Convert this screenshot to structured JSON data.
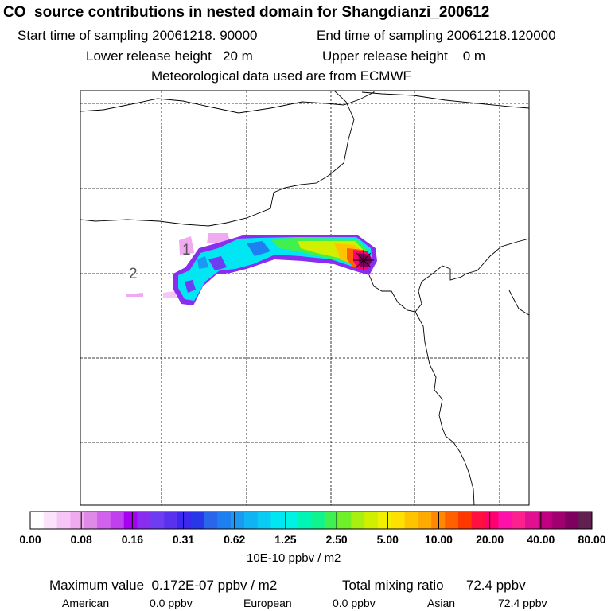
{
  "header": {
    "title": "CO  source contributions in nested domain for Shangdianzi_200612",
    "start_time": "Start time of sampling 20061218. 90000",
    "end_time": "End time of sampling 20061218.120000",
    "lower_height": "Lower release height   20 m",
    "upper_height": "Upper release height    0 m",
    "met_data": "Meteorological data used are from ECMWF"
  },
  "map": {
    "labels": {
      "mark1": "1",
      "mark2": "2"
    }
  },
  "colorbar": {
    "ticks": [
      "0.00",
      "0.08",
      "0.16",
      "0.31",
      "0.62",
      "1.25",
      "2.50",
      "5.00",
      "10.00",
      "20.00",
      "40.00",
      "80.00"
    ],
    "units": "10E-10 ppbv / m2",
    "colors": [
      "#ffffff",
      "#fbe3fb",
      "#f6c6f6",
      "#f0aaf0",
      "#e08ae8",
      "#d262ee",
      "#c040f0",
      "#a800f0",
      "#8a2df0",
      "#6e3cf2",
      "#5a32ee",
      "#3c28f0",
      "#2838e8",
      "#2a66ec",
      "#1e80f0",
      "#1a98f2",
      "#10b4f4",
      "#08ccf4",
      "#00e6f2",
      "#00f2e4",
      "#00f6b4",
      "#10f490",
      "#40f050",
      "#70f028",
      "#a8f010",
      "#d0f000",
      "#f0f000",
      "#ffe000",
      "#ffc400",
      "#ffaa00",
      "#ff8800",
      "#ff6000",
      "#ff3800",
      "#ff1040",
      "#ff0070",
      "#ff10a8",
      "#ff2090",
      "#e01090",
      "#c00080",
      "#a00070",
      "#800060",
      "#602050"
    ]
  },
  "footer": {
    "max_value": "Maximum value  0.172E-07 ppbv / m2",
    "total_mixing": "Total mixing ratio      72.4 ppbv",
    "american_label": "American",
    "american_value": "0.0 ppbv",
    "european_label": "European",
    "european_value": "0.0 ppbv",
    "asian_label": "Asian",
    "asian_value": "72.4 ppbv"
  }
}
